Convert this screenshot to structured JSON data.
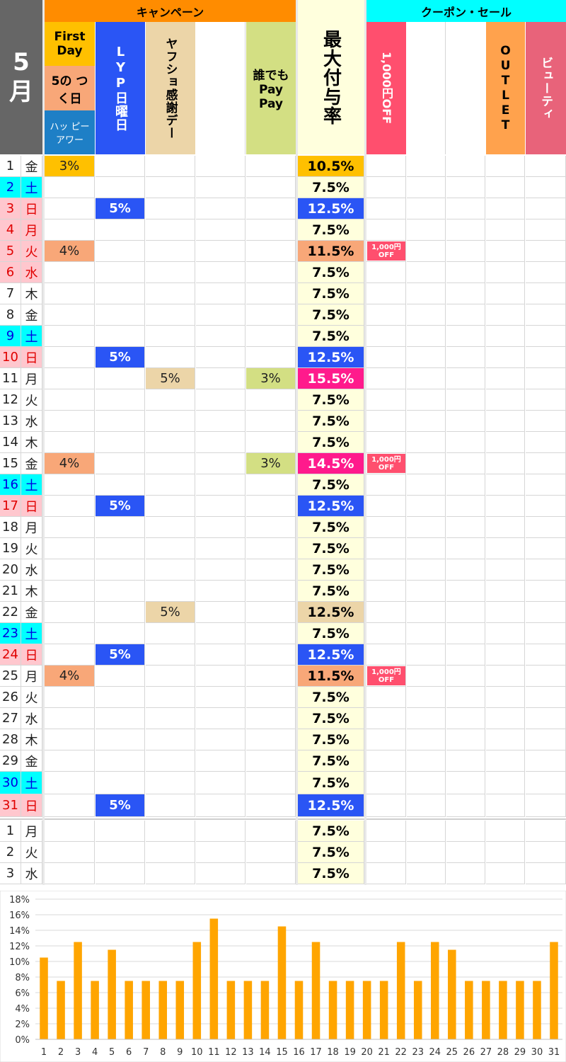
{
  "month_label": "5\n月",
  "headers": {
    "campaign": "キャンペーン",
    "coupon_sale": "クーポン・セール",
    "first_day": "First Day",
    "five_day": "5の つく日",
    "happy_hour": "ハッ ピー アワー",
    "lyp": "LYP日曜日",
    "yahoo_thanks": "ヤフショ感謝デー",
    "blank1": "",
    "anyone_paypay": "誰でも Pay Pay",
    "max_rate": "最大付与率",
    "off1000": "1,000円OFF",
    "blank2": "",
    "blank3": "",
    "outlet": "OUTLET",
    "beauty": "ビューティ"
  },
  "colors": {
    "campaign_header": "#ff8c00",
    "coupon_header": "#00ffff",
    "first_day": "#ffc000",
    "five_day": "#f8a778",
    "happy_hour": "#1e7fc6",
    "lyp": "#2a55f5",
    "yahoo_thanks": "#ecd5a8",
    "anyone_paypay": "#d3df83",
    "max_rate_bg": "#ffffdd",
    "off1000": "#ff4f6e",
    "outlet": "#ffa24d",
    "beauty": "#e8637a",
    "rate_magenta": "#ff1a8c",
    "sat_bg": "#00ffff",
    "sun_bg": "#ffc7ce",
    "sun_text": "#e00000",
    "sat_text": "#0000e0",
    "bar": "#ffa500"
  },
  "rows": [
    {
      "d": "1",
      "w": "金",
      "kind": "wk",
      "fd": "3%",
      "lyp": "",
      "yt": "",
      "pp": "",
      "rate": "10.5%",
      "rc": "first",
      "off": ""
    },
    {
      "d": "2",
      "w": "土",
      "kind": "sat",
      "fd": "",
      "lyp": "",
      "yt": "",
      "pp": "",
      "rate": "7.5%",
      "rc": "",
      "off": ""
    },
    {
      "d": "3",
      "w": "日",
      "kind": "sun",
      "fd": "",
      "lyp": "5%",
      "yt": "",
      "pp": "",
      "rate": "12.5%",
      "rc": "lyp",
      "off": ""
    },
    {
      "d": "4",
      "w": "月",
      "kind": "sun",
      "fd": "",
      "lyp": "",
      "yt": "",
      "pp": "",
      "rate": "7.5%",
      "rc": "",
      "off": ""
    },
    {
      "d": "5",
      "w": "火",
      "kind": "sun",
      "fd": "4%",
      "lyp": "",
      "yt": "",
      "pp": "",
      "rate": "11.5%",
      "rc": "five",
      "off": "1,000円 OFF"
    },
    {
      "d": "6",
      "w": "水",
      "kind": "sun",
      "fd": "",
      "lyp": "",
      "yt": "",
      "pp": "",
      "rate": "7.5%",
      "rc": "",
      "off": ""
    },
    {
      "d": "7",
      "w": "木",
      "kind": "wk",
      "fd": "",
      "lyp": "",
      "yt": "",
      "pp": "",
      "rate": "7.5%",
      "rc": "",
      "off": ""
    },
    {
      "d": "8",
      "w": "金",
      "kind": "wk",
      "fd": "",
      "lyp": "",
      "yt": "",
      "pp": "",
      "rate": "7.5%",
      "rc": "",
      "off": ""
    },
    {
      "d": "9",
      "w": "土",
      "kind": "sat",
      "fd": "",
      "lyp": "",
      "yt": "",
      "pp": "",
      "rate": "7.5%",
      "rc": "",
      "off": ""
    },
    {
      "d": "10",
      "w": "日",
      "kind": "sun",
      "fd": "",
      "lyp": "5%",
      "yt": "",
      "pp": "",
      "rate": "12.5%",
      "rc": "lyp",
      "off": ""
    },
    {
      "d": "11",
      "w": "月",
      "kind": "wk",
      "fd": "",
      "lyp": "",
      "yt": "5%",
      "pp": "3%",
      "rate": "15.5%",
      "rc": "mag",
      "off": ""
    },
    {
      "d": "12",
      "w": "火",
      "kind": "wk",
      "fd": "",
      "lyp": "",
      "yt": "",
      "pp": "",
      "rate": "7.5%",
      "rc": "",
      "off": ""
    },
    {
      "d": "13",
      "w": "水",
      "kind": "wk",
      "fd": "",
      "lyp": "",
      "yt": "",
      "pp": "",
      "rate": "7.5%",
      "rc": "",
      "off": ""
    },
    {
      "d": "14",
      "w": "木",
      "kind": "wk",
      "fd": "",
      "lyp": "",
      "yt": "",
      "pp": "",
      "rate": "7.5%",
      "rc": "",
      "off": ""
    },
    {
      "d": "15",
      "w": "金",
      "kind": "wk",
      "fd": "4%",
      "lyp": "",
      "yt": "",
      "pp": "3%",
      "rate": "14.5%",
      "rc": "mag",
      "off": "1,000円 OFF"
    },
    {
      "d": "16",
      "w": "土",
      "kind": "sat",
      "fd": "",
      "lyp": "",
      "yt": "",
      "pp": "",
      "rate": "7.5%",
      "rc": "",
      "off": ""
    },
    {
      "d": "17",
      "w": "日",
      "kind": "sun",
      "fd": "",
      "lyp": "5%",
      "yt": "",
      "pp": "",
      "rate": "12.5%",
      "rc": "lyp",
      "off": ""
    },
    {
      "d": "18",
      "w": "月",
      "kind": "wk",
      "fd": "",
      "lyp": "",
      "yt": "",
      "pp": "",
      "rate": "7.5%",
      "rc": "",
      "off": ""
    },
    {
      "d": "19",
      "w": "火",
      "kind": "wk",
      "fd": "",
      "lyp": "",
      "yt": "",
      "pp": "",
      "rate": "7.5%",
      "rc": "",
      "off": ""
    },
    {
      "d": "20",
      "w": "水",
      "kind": "wk",
      "fd": "",
      "lyp": "",
      "yt": "",
      "pp": "",
      "rate": "7.5%",
      "rc": "",
      "off": ""
    },
    {
      "d": "21",
      "w": "木",
      "kind": "wk",
      "fd": "",
      "lyp": "",
      "yt": "",
      "pp": "",
      "rate": "7.5%",
      "rc": "",
      "off": ""
    },
    {
      "d": "22",
      "w": "金",
      "kind": "wk",
      "fd": "",
      "lyp": "",
      "yt": "5%",
      "pp": "",
      "rate": "12.5%",
      "rc": "yt",
      "off": ""
    },
    {
      "d": "23",
      "w": "土",
      "kind": "sat",
      "fd": "",
      "lyp": "",
      "yt": "",
      "pp": "",
      "rate": "7.5%",
      "rc": "",
      "off": ""
    },
    {
      "d": "24",
      "w": "日",
      "kind": "sun",
      "fd": "",
      "lyp": "5%",
      "yt": "",
      "pp": "",
      "rate": "12.5%",
      "rc": "lyp",
      "off": ""
    },
    {
      "d": "25",
      "w": "月",
      "kind": "wk",
      "fd": "4%",
      "lyp": "",
      "yt": "",
      "pp": "",
      "rate": "11.5%",
      "rc": "five",
      "off": "1,000円 OFF"
    },
    {
      "d": "26",
      "w": "火",
      "kind": "wk",
      "fd": "",
      "lyp": "",
      "yt": "",
      "pp": "",
      "rate": "7.5%",
      "rc": "",
      "off": ""
    },
    {
      "d": "27",
      "w": "水",
      "kind": "wk",
      "fd": "",
      "lyp": "",
      "yt": "",
      "pp": "",
      "rate": "7.5%",
      "rc": "",
      "off": ""
    },
    {
      "d": "28",
      "w": "木",
      "kind": "wk",
      "fd": "",
      "lyp": "",
      "yt": "",
      "pp": "",
      "rate": "7.5%",
      "rc": "",
      "off": ""
    },
    {
      "d": "29",
      "w": "金",
      "kind": "wk",
      "fd": "",
      "lyp": "",
      "yt": "",
      "pp": "",
      "rate": "7.5%",
      "rc": "",
      "off": ""
    },
    {
      "d": "30",
      "w": "土",
      "kind": "sat",
      "fd": "",
      "lyp": "",
      "yt": "",
      "pp": "",
      "rate": "7.5%",
      "rc": "",
      "off": ""
    },
    {
      "d": "31",
      "w": "日",
      "kind": "sun",
      "fd": "",
      "lyp": "5%",
      "yt": "",
      "pp": "",
      "rate": "12.5%",
      "rc": "lyp",
      "off": ""
    }
  ],
  "next_rows": [
    {
      "d": "1",
      "w": "月",
      "kind": "wk",
      "rate": "7.5%"
    },
    {
      "d": "2",
      "w": "火",
      "kind": "wk",
      "rate": "7.5%"
    },
    {
      "d": "3",
      "w": "水",
      "kind": "wk",
      "rate": "7.5%"
    }
  ],
  "chart_data": {
    "type": "bar",
    "categories": [
      "1",
      "2",
      "3",
      "4",
      "5",
      "6",
      "7",
      "8",
      "9",
      "10",
      "11",
      "12",
      "13",
      "14",
      "15",
      "16",
      "17",
      "18",
      "19",
      "20",
      "21",
      "22",
      "23",
      "24",
      "25",
      "26",
      "27",
      "28",
      "29",
      "30",
      "31"
    ],
    "values": [
      10.5,
      7.5,
      12.5,
      7.5,
      11.5,
      7.5,
      7.5,
      7.5,
      7.5,
      12.5,
      15.5,
      7.5,
      7.5,
      7.5,
      14.5,
      7.5,
      12.5,
      7.5,
      7.5,
      7.5,
      7.5,
      12.5,
      7.5,
      12.5,
      11.5,
      7.5,
      7.5,
      7.5,
      7.5,
      7.5,
      12.5
    ],
    "ylim": [
      0,
      18
    ],
    "yticks": [
      "0%",
      "2%",
      "4%",
      "6%",
      "8%",
      "10%",
      "12%",
      "14%",
      "16%",
      "18%"
    ],
    "grid": true,
    "title": "",
    "xlabel": "",
    "ylabel": ""
  }
}
